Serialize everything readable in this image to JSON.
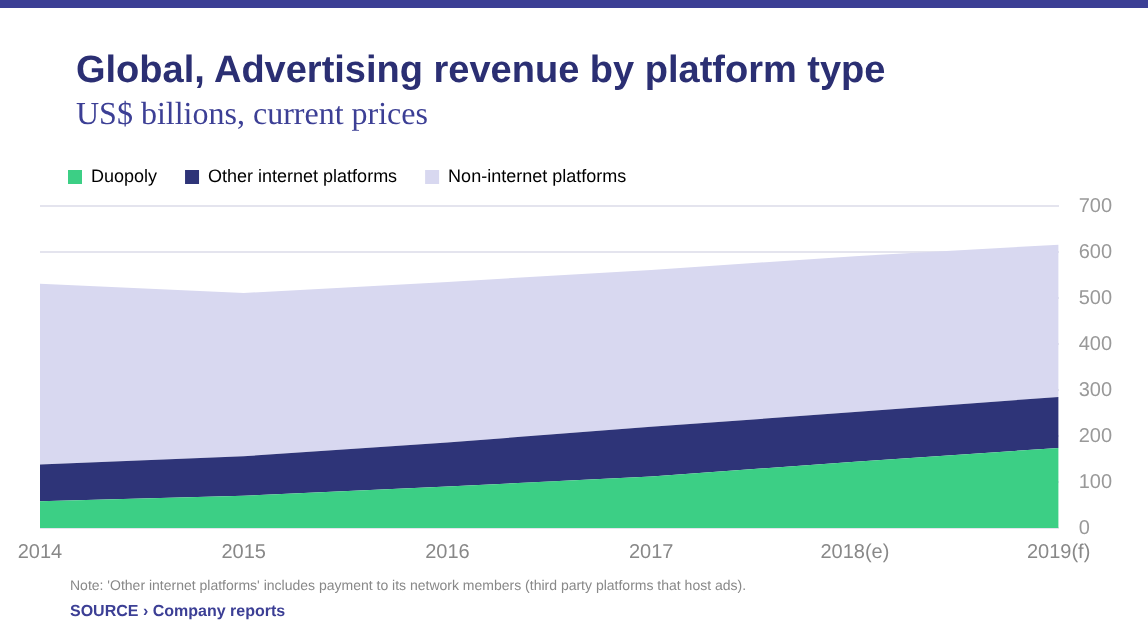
{
  "chart_data": {
    "type": "area",
    "title": "Global, Advertising revenue by platform type",
    "subtitle": "US$ billions, current prices",
    "categories": [
      "2014",
      "2015",
      "2016",
      "2017",
      "2018(e)",
      "2019(f)"
    ],
    "stacked": true,
    "series": [
      {
        "name": "Duopoly",
        "color": "#3ccf85",
        "values": [
          58,
          70,
          90,
          112,
          144,
          174
        ]
      },
      {
        "name": "Other internet platforms",
        "color": "#2e3478",
        "values": [
          80,
          86,
          96,
          108,
          108,
          111
        ]
      },
      {
        "name": "Non-internet platforms",
        "color": "#d8d8f0",
        "values": [
          393,
          355,
          349,
          341,
          339,
          331
        ]
      }
    ],
    "ylim": [
      0,
      700
    ],
    "yticks": [
      0,
      100,
      200,
      300,
      400,
      500,
      600,
      700
    ],
    "grid": "y",
    "legend": "top left",
    "annotations": [
      "Note: 'Other internet platforms' includes payment to its network members (third party platforms that host ads).",
      "SOURCE › Company reports"
    ]
  }
}
